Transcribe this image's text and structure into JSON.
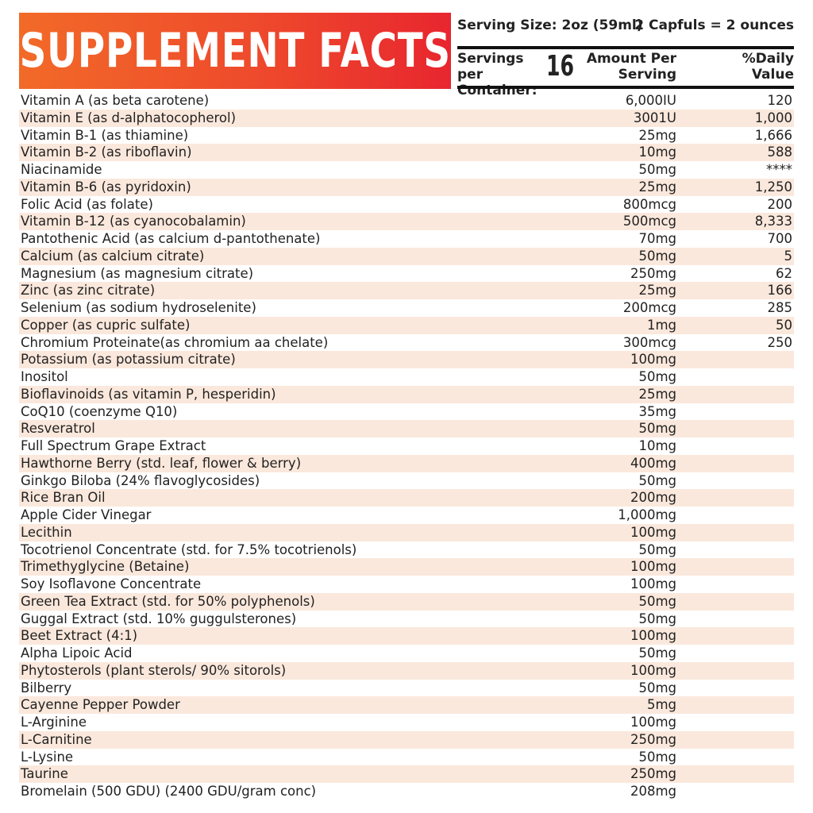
{
  "title": "SUPPLEMENT FACTS",
  "header": {
    "serving_size": "Serving Size: 2oz (59ml)",
    "capfuls": "2 Capfuls = 2 ounces",
    "servings_per_container_label": "Servings per Container:",
    "servings_per_container_value": "16",
    "amount_per_serving_label": "Amount Per Serving",
    "daily_value_label": "%Daily Value"
  },
  "ingredients": [
    {
      "name": "Vitamin A (as beta carotene)",
      "amount": "6,000IU",
      "dv": "120"
    },
    {
      "name": "Vitamin E (as d-alphatocopherol)",
      "amount": "3001U",
      "dv": "1,000"
    },
    {
      "name": "Vitamin B-1 (as thiamine)",
      "amount": "25mg",
      "dv": "1,666"
    },
    {
      "name": "Vitamin B-2 (as riboflavin)",
      "amount": "10mg",
      "dv": "588"
    },
    {
      "name": "Niacinamide",
      "amount": "50mg",
      "dv": "****"
    },
    {
      "name": "Vitamin B-6 (as pyridoxin)",
      "amount": "25mg",
      "dv": "1,250"
    },
    {
      "name": "Folic Acid (as folate)",
      "amount": "800mcg",
      "dv": "200"
    },
    {
      "name": "Vitamin B-12 (as cyanocobalamin)",
      "amount": "500mcg",
      "dv": "8,333"
    },
    {
      "name": "Pantothenic Acid (as calcium d-pantothenate)",
      "amount": "70mg",
      "dv": "700"
    },
    {
      "name": "Calcium (as calcium citrate)",
      "amount": "50mg",
      "dv": "5"
    },
    {
      "name": "Magnesium (as magnesium citrate)",
      "amount": "250mg",
      "dv": "62"
    },
    {
      "name": "Zinc (as zinc citrate)",
      "amount": "25mg",
      "dv": "166"
    },
    {
      "name": "Selenium (as sodium hydroselenite)",
      "amount": "200mcg",
      "dv": "285"
    },
    {
      "name": "Copper (as cupric sulfate)",
      "amount": "1mg",
      "dv": "50"
    },
    {
      "name": "Chromium Proteinate(as chromium aa chelate)",
      "amount": "300mcg",
      "dv": "250"
    },
    {
      "name": "Potassium (as potassium citrate)",
      "amount": "100mg",
      "dv": ""
    },
    {
      "name": "Inositol",
      "amount": "50mg",
      "dv": ""
    },
    {
      "name": "Bioflavinoids (as vitamin P, hesperidin)",
      "amount": "25mg",
      "dv": ""
    },
    {
      "name": "CoQ10 (coenzyme Q10)",
      "amount": "35mg",
      "dv": ""
    },
    {
      "name": "Resveratrol",
      "amount": "50mg",
      "dv": ""
    },
    {
      "name": "Full Spectrum Grape Extract",
      "amount": "10mg",
      "dv": ""
    },
    {
      "name": "Hawthorne Berry (std. leaf, flower & berry)",
      "amount": "400mg",
      "dv": ""
    },
    {
      "name": "Ginkgo Biloba (24% flavoglycosides)",
      "amount": "50mg",
      "dv": ""
    },
    {
      "name": "Rice Bran Oil",
      "amount": "200mg",
      "dv": ""
    },
    {
      "name": "Apple Cider Vinegar",
      "amount": "1,000mg",
      "dv": ""
    },
    {
      "name": "Lecithin",
      "amount": "100mg",
      "dv": ""
    },
    {
      "name": "Tocotrienol Concentrate (std. for 7.5% tocotrienols)",
      "amount": "50mg",
      "dv": ""
    },
    {
      "name": "Trimethyglycine (Betaine)",
      "amount": "100mg",
      "dv": ""
    },
    {
      "name": "Soy Isoflavone Concentrate",
      "amount": "100mg",
      "dv": ""
    },
    {
      "name": "Green Tea Extract (std. for 50% polyphenols)",
      "amount": "50mg",
      "dv": ""
    },
    {
      "name": "Guggal Extract (std. 10% guggulsterones)",
      "amount": "50mg",
      "dv": ""
    },
    {
      "name": "Beet Extract (4:1)",
      "amount": "100mg",
      "dv": ""
    },
    {
      "name": "Alpha Lipoic Acid",
      "amount": "50mg",
      "dv": ""
    },
    {
      "name": "Phytosterols (plant sterols/ 90% sitorols)",
      "amount": "100mg",
      "dv": ""
    },
    {
      "name": "Bilberry",
      "amount": "50mg",
      "dv": ""
    },
    {
      "name": "Cayenne Pepper Powder",
      "amount": "5mg",
      "dv": ""
    },
    {
      "name": "L-Arginine",
      "amount": "100mg",
      "dv": ""
    },
    {
      "name": "L-Carnitine",
      "amount": "250mg",
      "dv": ""
    },
    {
      "name": "L-Lysine",
      "amount": "50mg",
      "dv": ""
    },
    {
      "name": "Taurine",
      "amount": "250mg",
      "dv": ""
    },
    {
      "name": "Bromelain (500 GDU) (2400 GDU/gram conc)",
      "amount": "208mg",
      "dv": ""
    }
  ]
}
